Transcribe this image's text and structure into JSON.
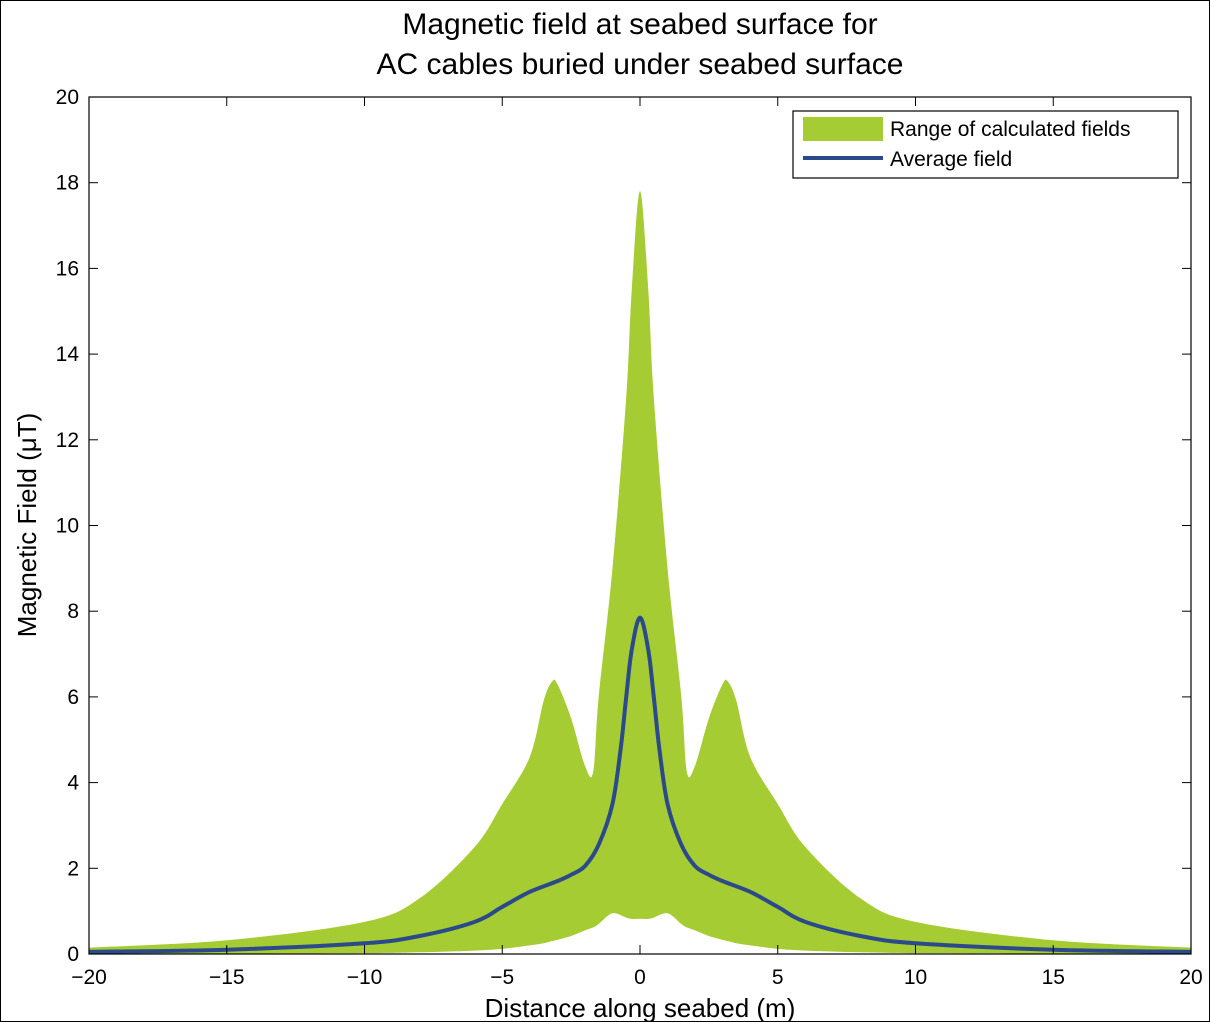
{
  "chart_data": {
    "type": "area",
    "title": [
      "Magnetic field at seabed surface for",
      "AC cables buried under seabed surface"
    ],
    "xlabel": "Distance along seabed (m)",
    "ylabel": "Magnetic Field (μT)",
    "xlim": [
      -20,
      20
    ],
    "ylim": [
      0,
      20
    ],
    "x_ticks": [
      -20,
      -15,
      -10,
      -5,
      0,
      5,
      10,
      15,
      20
    ],
    "x_tick_labels": [
      "−20",
      "−15",
      "−10",
      "−5",
      "0",
      "5",
      "10",
      "15",
      "20"
    ],
    "y_ticks": [
      0,
      2,
      4,
      6,
      8,
      10,
      12,
      14,
      16,
      18,
      20
    ],
    "y_tick_labels": [
      "0",
      "2",
      "4",
      "6",
      "8",
      "10",
      "12",
      "14",
      "16",
      "18",
      "20"
    ],
    "grid": false,
    "legend_position": "top-right",
    "colors": {
      "range_fill": "#a6cc33",
      "average_line": "#2b4a8b"
    },
    "series": [
      {
        "name": "Range of calculated fields",
        "kind": "band",
        "x": [
          -20,
          -15,
          -10,
          -8,
          -6,
          -5,
          -4,
          -3.5,
          -3.2,
          -3,
          -2.5,
          -2,
          -1.7,
          -1.5,
          -1,
          -0.5,
          -0.3,
          0,
          0.3,
          0.5,
          1,
          1.5,
          1.7,
          2,
          2.5,
          3,
          3.2,
          3.5,
          4,
          5,
          6,
          8,
          10,
          15,
          20
        ],
        "lower": [
          0,
          0.01,
          0.02,
          0.04,
          0.08,
          0.12,
          0.2,
          0.25,
          0.3,
          0.33,
          0.42,
          0.55,
          0.62,
          0.7,
          0.95,
          0.85,
          0.82,
          0.82,
          0.82,
          0.85,
          0.95,
          0.7,
          0.62,
          0.55,
          0.42,
          0.33,
          0.3,
          0.25,
          0.2,
          0.12,
          0.08,
          0.04,
          0.02,
          0.01,
          0
        ],
        "upper": [
          0.15,
          0.32,
          0.75,
          1.3,
          2.5,
          3.5,
          4.6,
          5.9,
          6.35,
          6.3,
          5.5,
          4.4,
          4.25,
          6.0,
          9.0,
          13.0,
          15.5,
          17.8,
          15.5,
          13.0,
          9.0,
          6.0,
          4.25,
          4.4,
          5.5,
          6.3,
          6.35,
          5.9,
          4.6,
          3.5,
          2.5,
          1.3,
          0.75,
          0.32,
          0.15
        ]
      },
      {
        "name": "Average field",
        "kind": "line",
        "x": [
          -20,
          -15,
          -10,
          -8,
          -6,
          -5,
          -4,
          -3,
          -2.5,
          -2,
          -1.5,
          -1,
          -0.7,
          -0.5,
          -0.3,
          0,
          0.3,
          0.5,
          0.7,
          1,
          1.5,
          2,
          2.5,
          3,
          4,
          5,
          6,
          8,
          10,
          15,
          20
        ],
        "y": [
          0.05,
          0.1,
          0.25,
          0.42,
          0.75,
          1.1,
          1.45,
          1.7,
          1.85,
          2.05,
          2.55,
          3.5,
          4.8,
          6.0,
          7.1,
          7.85,
          7.1,
          6.0,
          4.8,
          3.5,
          2.55,
          2.05,
          1.85,
          1.7,
          1.45,
          1.1,
          0.75,
          0.42,
          0.25,
          0.1,
          0.05
        ]
      }
    ]
  }
}
